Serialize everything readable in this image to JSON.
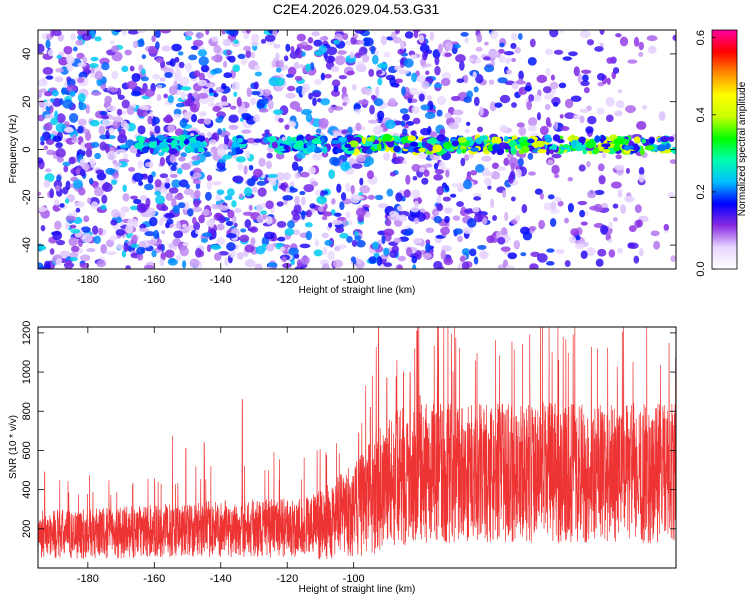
{
  "figure_title": "C2E4.2026.029.04.53.G31",
  "chart_data": [
    {
      "type": "heatmap",
      "name": "spectrogram",
      "title": "C2E4.2026.029.04.53.G31",
      "xlabel": "Height of straight line (km)",
      "ylabel": "Frequency (Hz)",
      "xlim": [
        -195,
        -3
      ],
      "ylim": [
        -50,
        50
      ],
      "xticks": [
        -180,
        -160,
        -140,
        -120,
        -100
      ],
      "xtick_labels": [
        "-180",
        "-160",
        "-140",
        "-120",
        "-100"
      ],
      "yticks": [
        -40,
        -20,
        0,
        20,
        40
      ],
      "ytick_labels": [
        "-40",
        "-20",
        "0",
        "20",
        "40"
      ],
      "colorbar": {
        "label": "Normalized spectral amplitude",
        "range": [
          0,
          0.62
        ],
        "ticks": [
          0.0,
          0.2,
          0.4,
          0.6
        ],
        "tick_labels": [
          "0.0",
          "0.2",
          "0.4",
          "0.6"
        ],
        "colors": [
          "#ffffff",
          "#e8d6ff",
          "#8a2be2",
          "#0000ff",
          "#00bfff",
          "#00ffb0",
          "#00ff00",
          "#c8ff00",
          "#ffff00",
          "#ff8c00",
          "#ff0000",
          "#ff00a0"
        ]
      },
      "signal_band": {
        "frequency_hz": 2,
        "segments": [
          [
            -165,
            -145
          ],
          [
            -136,
            -133
          ],
          [
            -125,
            -108
          ],
          [
            -106,
            -3
          ]
        ],
        "peak_amplitude": 0.6
      },
      "noise": {
        "amplitude_range": [
          0.0,
          0.18
        ],
        "edge_fade_x_range": [
          -100,
          -3
        ]
      }
    },
    {
      "type": "line",
      "name": "snr",
      "xlabel": "Height of straight line (km)",
      "ylabel": "SNR (10 * v/v)",
      "xlim": [
        -195,
        -3
      ],
      "ylim": [
        0,
        1230
      ],
      "xticks": [
        -180,
        -160,
        -140,
        -120,
        -100
      ],
      "xtick_labels": [
        "-180",
        "-160",
        "-140",
        "-120",
        "-100"
      ],
      "yticks": [
        200,
        400,
        600,
        800,
        1000,
        1200
      ],
      "ytick_labels": [
        "200",
        "400",
        "600",
        "800",
        "1000",
        "1200"
      ],
      "color": "#ee3333",
      "series": [
        {
          "name": "SNR",
          "envelope": {
            "x": [
              -195,
              -180,
              -160,
              -140,
              -120,
              -110,
              -100,
              -95,
              -92,
              -88,
              -85,
              -80
            ],
            "baseline": [
              160,
              160,
              175,
              185,
              190,
              200,
              270,
              330,
              380,
              420,
              430,
              450
            ],
            "noise_span": [
              160,
              160,
              170,
              180,
              190,
              220,
              300,
              360,
              420,
              430,
              440,
              450
            ]
          },
          "spikes": [
            {
              "x": -193,
              "y": 490
            },
            {
              "x": -154.5,
              "y": 675
            },
            {
              "x": -150.5,
              "y": 610
            },
            {
              "x": -145,
              "y": 640
            },
            {
              "x": -133.5,
              "y": 860
            },
            {
              "x": -124,
              "y": 590
            },
            {
              "x": -111,
              "y": 600
            },
            {
              "x": -98.5,
              "y": 690
            },
            {
              "x": -95,
              "y": 820
            },
            {
              "x": -92.5,
              "y": 1230
            },
            {
              "x": -90,
              "y": 970
            },
            {
              "x": -87,
              "y": 1060
            },
            {
              "x": -85,
              "y": 1000
            },
            {
              "x": -83,
              "y": 1000
            },
            {
              "x": -81,
              "y": 1210
            },
            {
              "x": -80,
              "y": 880
            }
          ]
        }
      ]
    }
  ]
}
